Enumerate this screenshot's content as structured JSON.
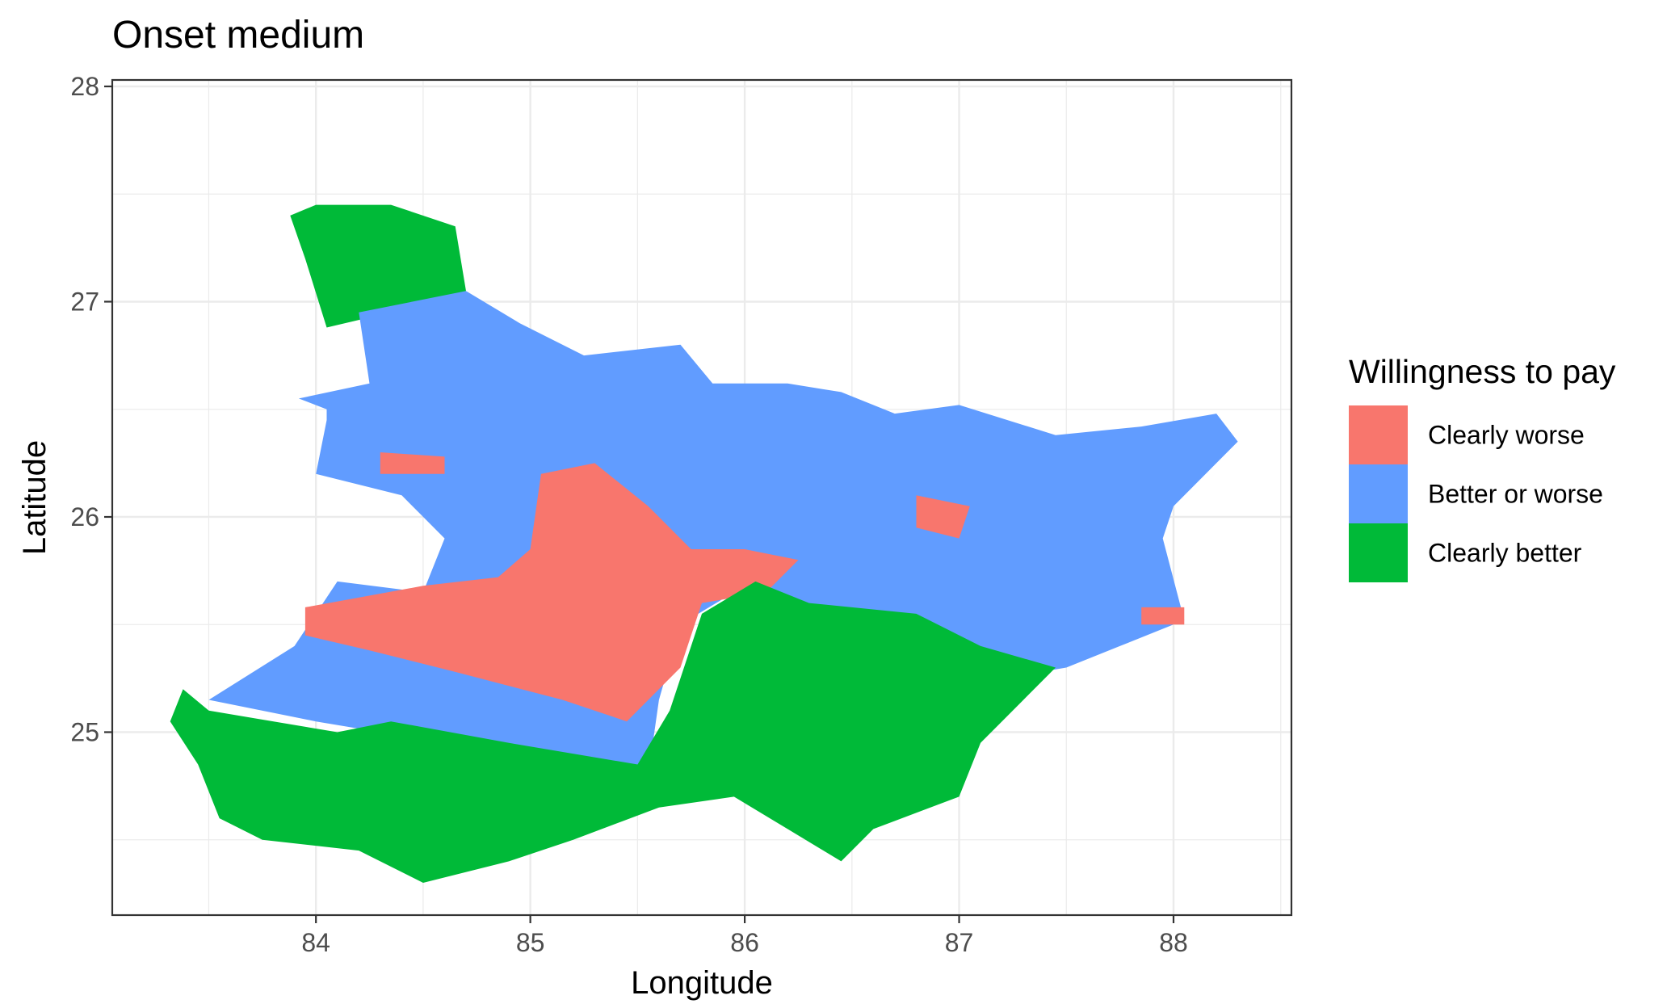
{
  "chart_data": {
    "type": "heatmap",
    "title": "Onset medium",
    "xlabel": "Longitude",
    "ylabel": "Latitude",
    "xlim": [
      83.05,
      88.55
    ],
    "ylim": [
      24.15,
      28.03
    ],
    "x_ticks": [
      84,
      85,
      86,
      87,
      88
    ],
    "y_ticks": [
      25,
      26,
      27,
      28
    ],
    "grid": true,
    "legend": {
      "title": "Willingness to pay",
      "position": "right",
      "entries": [
        {
          "key": "worse",
          "label": "Clearly worse",
          "color": "#F8766D"
        },
        {
          "key": "either",
          "label": "Better or worse",
          "color": "#619CFF"
        },
        {
          "key": "better",
          "label": "Clearly better",
          "color": "#00BA38"
        }
      ]
    },
    "cell_size_degrees": 0.1,
    "approx_regions": [
      {
        "category": "Clearly better",
        "polygon": [
          [
            84.0,
            27.45
          ],
          [
            84.35,
            27.45
          ],
          [
            84.65,
            27.35
          ],
          [
            84.7,
            27.05
          ],
          [
            84.35,
            26.95
          ],
          [
            84.05,
            26.88
          ],
          [
            83.95,
            27.2
          ],
          [
            83.88,
            27.4
          ]
        ]
      },
      {
        "category": "Better or worse",
        "polygon": [
          [
            83.92,
            26.55
          ],
          [
            84.25,
            26.62
          ],
          [
            84.2,
            26.95
          ],
          [
            84.7,
            27.05
          ],
          [
            84.95,
            26.9
          ],
          [
            85.25,
            26.75
          ],
          [
            85.7,
            26.8
          ],
          [
            85.85,
            26.62
          ],
          [
            86.2,
            26.62
          ],
          [
            86.45,
            26.58
          ],
          [
            86.7,
            26.48
          ],
          [
            87.0,
            26.52
          ],
          [
            87.45,
            26.38
          ],
          [
            87.85,
            26.42
          ],
          [
            88.2,
            26.48
          ],
          [
            88.3,
            26.35
          ],
          [
            88.0,
            26.05
          ],
          [
            87.95,
            25.9
          ],
          [
            88.05,
            25.52
          ],
          [
            87.75,
            25.4
          ],
          [
            87.5,
            25.3
          ],
          [
            87.2,
            25.25
          ],
          [
            86.95,
            25.45
          ],
          [
            86.4,
            25.55
          ],
          [
            86.0,
            25.68
          ],
          [
            85.7,
            25.5
          ],
          [
            85.6,
            25.15
          ],
          [
            85.55,
            24.8
          ],
          [
            85.15,
            24.85
          ],
          [
            84.6,
            24.95
          ],
          [
            84.0,
            25.05
          ],
          [
            83.5,
            25.15
          ],
          [
            83.9,
            25.4
          ],
          [
            84.1,
            25.7
          ],
          [
            84.5,
            25.65
          ],
          [
            84.6,
            25.9
          ],
          [
            84.4,
            26.1
          ],
          [
            84.0,
            26.2
          ],
          [
            84.05,
            26.45
          ],
          [
            84.05,
            26.5
          ]
        ]
      },
      {
        "category": "Clearly worse",
        "polygon": [
          [
            83.95,
            25.58
          ],
          [
            84.5,
            25.68
          ],
          [
            84.85,
            25.72
          ],
          [
            85.0,
            25.85
          ],
          [
            85.05,
            26.2
          ],
          [
            85.3,
            26.25
          ],
          [
            85.55,
            26.05
          ],
          [
            85.75,
            25.85
          ],
          [
            86.0,
            25.85
          ],
          [
            86.25,
            25.8
          ],
          [
            86.1,
            25.65
          ],
          [
            85.8,
            25.6
          ],
          [
            85.7,
            25.3
          ],
          [
            85.45,
            25.05
          ],
          [
            85.15,
            25.15
          ],
          [
            84.65,
            25.28
          ],
          [
            84.25,
            25.38
          ],
          [
            83.95,
            25.45
          ]
        ]
      },
      {
        "category": "Clearly better",
        "polygon": [
          [
            83.38,
            25.2
          ],
          [
            83.5,
            25.1
          ],
          [
            84.1,
            25.0
          ],
          [
            84.35,
            25.05
          ],
          [
            84.9,
            24.95
          ],
          [
            85.5,
            24.85
          ],
          [
            85.65,
            25.1
          ],
          [
            85.8,
            25.55
          ],
          [
            86.05,
            25.7
          ],
          [
            86.3,
            25.6
          ],
          [
            86.8,
            25.55
          ],
          [
            87.1,
            25.4
          ],
          [
            87.45,
            25.3
          ],
          [
            87.3,
            25.15
          ],
          [
            87.1,
            24.95
          ],
          [
            87.0,
            24.7
          ],
          [
            86.6,
            24.55
          ],
          [
            86.45,
            24.4
          ],
          [
            86.2,
            24.55
          ],
          [
            85.95,
            24.7
          ],
          [
            85.6,
            24.65
          ],
          [
            85.2,
            24.5
          ],
          [
            84.9,
            24.4
          ],
          [
            84.5,
            24.3
          ],
          [
            84.2,
            24.45
          ],
          [
            83.75,
            24.5
          ],
          [
            83.55,
            24.6
          ],
          [
            83.45,
            24.85
          ],
          [
            83.32,
            25.05
          ]
        ]
      },
      {
        "category": "Clearly worse",
        "polygon": [
          [
            84.3,
            26.3
          ],
          [
            84.6,
            26.28
          ],
          [
            84.6,
            26.2
          ],
          [
            84.3,
            26.2
          ]
        ]
      },
      {
        "category": "Clearly worse",
        "polygon": [
          [
            86.8,
            26.1
          ],
          [
            87.05,
            26.05
          ],
          [
            87.0,
            25.9
          ],
          [
            86.8,
            25.95
          ]
        ]
      },
      {
        "category": "Clearly worse",
        "polygon": [
          [
            87.85,
            25.58
          ],
          [
            88.05,
            25.58
          ],
          [
            88.05,
            25.5
          ],
          [
            87.85,
            25.5
          ]
        ]
      }
    ]
  }
}
